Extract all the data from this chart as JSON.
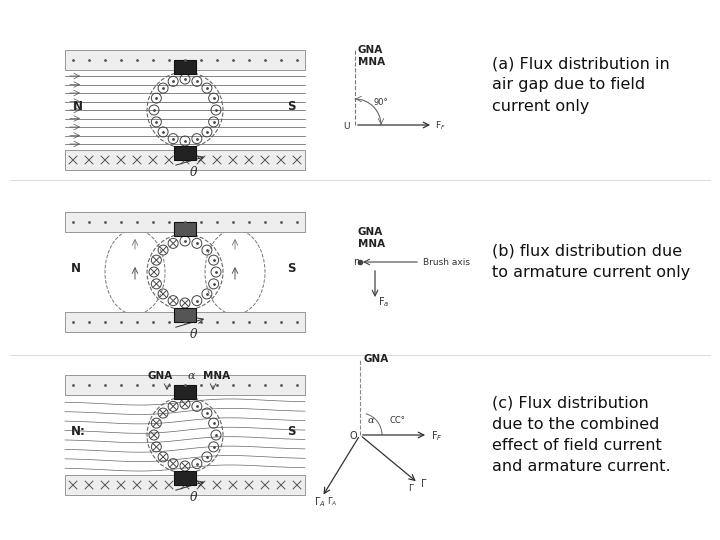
{
  "bg_color": "#ffffff",
  "text_a": "(a) Flux distribution in\nair gap due to field\ncurrent only",
  "text_b": "(b) flux distribution due\nto armature current only",
  "text_c": "(c) Flux distribution\ndue to the combined\neffect of field current\nand armature current.",
  "text_fontsize": 11.5,
  "label_fontsize": 7,
  "diagram_line_color": "#555555"
}
